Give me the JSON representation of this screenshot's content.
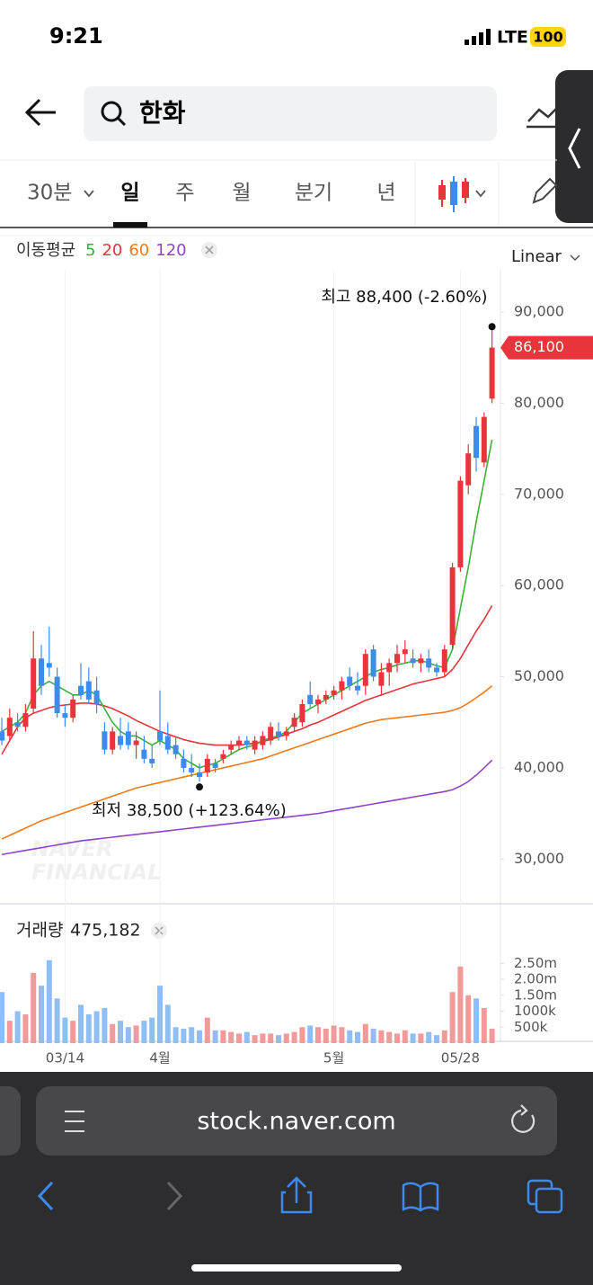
{
  "status_bar": {
    "time": "9:21",
    "network": "LTE",
    "battery": "100"
  },
  "search": {
    "query": "한화"
  },
  "period_tabs": {
    "items": [
      "30분",
      "일",
      "주",
      "월",
      "분기",
      "년"
    ],
    "selected": 1
  },
  "browser": {
    "url": "stock.naver.com"
  },
  "watermark": [
    "NAVER",
    "FINANCIAL"
  ],
  "chart_data": [
    {
      "type": "candlestick",
      "legend_title": "이동평균",
      "scale": "Linear",
      "up_color": "#e8343a",
      "down_color": "#3d8bef",
      "ylim": [
        25100,
        94640
      ],
      "yticks": [
        {
          "value": 30000,
          "label": "30,000"
        },
        {
          "value": 40000,
          "label": "40,000"
        },
        {
          "value": 50000,
          "label": "50,000"
        },
        {
          "value": 60000,
          "label": "60,000"
        },
        {
          "value": 70000,
          "label": "70,000"
        },
        {
          "value": 80000,
          "label": "80,000"
        },
        {
          "value": 90000,
          "label": "90,000"
        }
      ],
      "current_price": {
        "value": 86100,
        "label": "86,100"
      },
      "high_annotation": "최고 88,400 (-2.60%)",
      "low_annotation": "최저 38,500 (+123.64%)",
      "open": [
        44000,
        43500,
        45000,
        44500,
        46500,
        52000,
        51500,
        50000,
        46000,
        45500,
        49000,
        49500,
        48500,
        44000,
        42000,
        43500,
        44000,
        42500,
        42000,
        41000,
        44000,
        43500,
        42500,
        41000,
        40000,
        39500,
        39500,
        40500,
        41000,
        42000,
        42500,
        43000,
        42000,
        42500,
        43000,
        44000,
        43500,
        44500,
        45000,
        48000,
        47000,
        47500,
        48000,
        48500,
        50000,
        49000,
        49000,
        53000,
        49000,
        50500,
        51500,
        52500,
        52000,
        51500,
        52000,
        51000,
        50500,
        53500,
        62000,
        71000,
        77500,
        73500,
        80500
      ],
      "high": [
        45500,
        46500,
        46000,
        47000,
        55000,
        53500,
        55500,
        51000,
        47000,
        48000,
        51500,
        51000,
        50000,
        45000,
        44500,
        45500,
        45000,
        44000,
        43500,
        42500,
        48500,
        45000,
        43500,
        42000,
        41500,
        40500,
        41500,
        41000,
        42000,
        43000,
        43500,
        43500,
        43500,
        44000,
        45000,
        45000,
        44500,
        46000,
        47500,
        49500,
        48000,
        48500,
        49000,
        50000,
        51000,
        50500,
        53000,
        53500,
        51500,
        52000,
        53500,
        54000,
        53000,
        52500,
        53000,
        51500,
        53500,
        62500,
        72000,
        75500,
        78500,
        79000,
        88400
      ],
      "low": [
        42500,
        43000,
        44000,
        44000,
        46000,
        48000,
        50000,
        45500,
        44500,
        45000,
        47500,
        47000,
        46000,
        41500,
        41500,
        42000,
        42000,
        41000,
        40500,
        40000,
        42500,
        41500,
        41000,
        39500,
        39000,
        38500,
        39000,
        39500,
        40500,
        41500,
        42000,
        42000,
        41500,
        42000,
        42500,
        43000,
        43000,
        44000,
        44500,
        46500,
        46000,
        47000,
        47500,
        47500,
        48500,
        48000,
        48000,
        49500,
        48000,
        49000,
        50500,
        51500,
        51000,
        50500,
        50500,
        50000,
        50000,
        53000,
        61500,
        70000,
        72500,
        73000,
        80000
      ],
      "close": [
        43000,
        45500,
        44500,
        46000,
        52000,
        49000,
        51000,
        46000,
        45500,
        47500,
        48000,
        47500,
        47000,
        42000,
        44000,
        42500,
        42500,
        43000,
        41000,
        40500,
        43000,
        42000,
        41500,
        40000,
        39500,
        39000,
        41000,
        40000,
        41500,
        42500,
        43000,
        42500,
        43000,
        43500,
        44500,
        43500,
        44000,
        45500,
        47000,
        47000,
        47500,
        48000,
        48500,
        49500,
        49000,
        48500,
        52500,
        50000,
        50500,
        51500,
        52500,
        53000,
        51500,
        52000,
        51000,
        50500,
        53000,
        62000,
        71500,
        74500,
        74000,
        78500,
        86100
      ],
      "series": [
        {
          "name": "5",
          "color": "#3bb13b",
          "values": [
            44000,
            44500,
            45000,
            46000,
            48000,
            49000,
            49500,
            49000,
            48500,
            48000,
            48000,
            48500,
            48000,
            46500,
            45000,
            44000,
            43500,
            43500,
            43000,
            42500,
            43000,
            42500,
            42000,
            41000,
            40500,
            40000,
            40300,
            40500,
            41000,
            41500,
            42000,
            42300,
            42500,
            43000,
            43300,
            43500,
            44000,
            45000,
            46000,
            46500,
            47000,
            47500,
            48000,
            48500,
            49000,
            49500,
            50000,
            50500,
            50800,
            51000,
            51300,
            51500,
            51700,
            51800,
            51500,
            51200,
            51000,
            53000,
            57500,
            62000,
            67000,
            71500,
            76000
          ]
        },
        {
          "name": "20",
          "color": "#e8343a",
          "values": [
            41500,
            43000,
            44500,
            45500,
            46000,
            46300,
            46600,
            46800,
            46900,
            47000,
            47100,
            47100,
            47000,
            46800,
            46500,
            46100,
            45700,
            45200,
            44800,
            44400,
            44000,
            43700,
            43400,
            43100,
            42900,
            42700,
            42600,
            42500,
            42500,
            42500,
            42500,
            42600,
            42700,
            42900,
            43100,
            43400,
            43700,
            44000,
            44300,
            44700,
            45000,
            45400,
            45800,
            46200,
            46600,
            47000,
            47400,
            47700,
            48000,
            48300,
            48600,
            48900,
            49200,
            49400,
            49600,
            49800,
            50000,
            50800,
            52000,
            53500,
            55000,
            56300,
            57800
          ]
        },
        {
          "name": "60",
          "color": "#f07a1a",
          "values": [
            32200,
            32600,
            33000,
            33400,
            33800,
            34200,
            34500,
            34800,
            35100,
            35400,
            35700,
            36000,
            36300,
            36600,
            36900,
            37200,
            37500,
            37800,
            38000,
            38200,
            38400,
            38600,
            38800,
            39000,
            39200,
            39400,
            39600,
            39800,
            40000,
            40200,
            40400,
            40600,
            40800,
            41000,
            41300,
            41600,
            41900,
            42200,
            42500,
            42800,
            43100,
            43400,
            43700,
            44000,
            44300,
            44600,
            44900,
            45100,
            45300,
            45400,
            45500,
            45600,
            45700,
            45800,
            45900,
            46000,
            46100,
            46300,
            46600,
            47100,
            47700,
            48300,
            49000
          ]
        },
        {
          "name": "120",
          "color": "#8e44c9",
          "values": [
            30500,
            30650,
            30800,
            30950,
            31100,
            31250,
            31400,
            31550,
            31700,
            31850,
            32000,
            32100,
            32200,
            32300,
            32400,
            32500,
            32600,
            32700,
            32800,
            32900,
            33000,
            33100,
            33200,
            33300,
            33400,
            33500,
            33600,
            33700,
            33800,
            33900,
            34000,
            34100,
            34200,
            34300,
            34400,
            34500,
            34600,
            34700,
            34800,
            34900,
            35000,
            35150,
            35300,
            35450,
            35600,
            35750,
            35900,
            36050,
            36200,
            36350,
            36500,
            36650,
            36800,
            36950,
            37100,
            37250,
            37400,
            37600,
            38000,
            38500,
            39200,
            40000,
            40850
          ]
        }
      ]
    },
    {
      "type": "bar",
      "title": "거래량",
      "current": "475,182",
      "ylim": [
        0,
        3240000
      ],
      "yticks": [
        {
          "value": 500000,
          "label": "500k"
        },
        {
          "value": 1000000,
          "label": "1000k"
        },
        {
          "value": 1500000,
          "label": "1.50m"
        },
        {
          "value": 2000000,
          "label": "2.00m"
        },
        {
          "value": 2500000,
          "label": "2.50m"
        }
      ],
      "categories": [
        null,
        null,
        null,
        null,
        null,
        null,
        null,
        null,
        "03/14",
        null,
        null,
        null,
        null,
        null,
        null,
        null,
        null,
        null,
        null,
        null,
        "4월",
        null,
        null,
        null,
        null,
        null,
        null,
        null,
        null,
        null,
        null,
        null,
        null,
        null,
        null,
        null,
        null,
        null,
        null,
        null,
        null,
        null,
        "5월",
        null,
        null,
        null,
        null,
        null,
        null,
        null,
        null,
        null,
        null,
        null,
        null,
        null,
        null,
        null,
        "05/28",
        null,
        null,
        null,
        null
      ],
      "values": [
        1600000,
        700000,
        1000000,
        900000,
        2200000,
        1800000,
        2600000,
        1400000,
        800000,
        700000,
        1200000,
        900000,
        1000000,
        1100000,
        600000,
        700000,
        500000,
        550000,
        700000,
        800000,
        1800000,
        1200000,
        500000,
        450000,
        500000,
        400000,
        800000,
        400000,
        400000,
        350000,
        300000,
        350000,
        250000,
        300000,
        300000,
        250000,
        300000,
        350000,
        500000,
        550000,
        500000,
        450000,
        550000,
        500000,
        400000,
        350000,
        600000,
        450000,
        400000,
        350000,
        300000,
        400000,
        300000,
        300000,
        350000,
        250000,
        400000,
        1600000,
        2400000,
        1500000,
        1400000,
        1100000,
        450000
      ]
    }
  ]
}
